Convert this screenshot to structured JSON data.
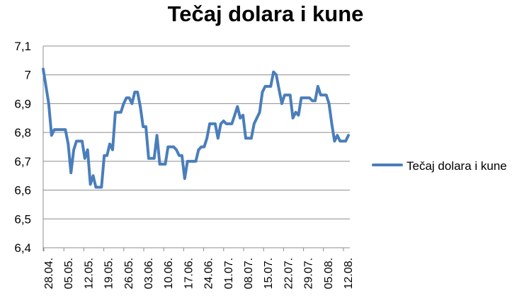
{
  "chart_data": {
    "type": "line",
    "title": "Tečaj dolara i kune",
    "xlabel": "",
    "ylabel": "",
    "ylim": [
      6.4,
      7.1
    ],
    "yticks": [
      "6,4",
      "6,5",
      "6,6",
      "6,7",
      "6,8",
      "6,9",
      "7",
      "7,1"
    ],
    "x_tick_labels": [
      "28.04.",
      "05.05.",
      "12.05.",
      "19.05.",
      "26.05.",
      "03.06.",
      "10.06.",
      "17.06.",
      "24.06.",
      "01.07.",
      "08.07.",
      "15.07.",
      "22.07.",
      "29.07.",
      "05.08.",
      "12.08."
    ],
    "grid": true,
    "legend": "right",
    "colors": {
      "series": "#4a7ebb"
    },
    "series": [
      {
        "name": "Tečaj dolara i kune",
        "values": [
          7.02,
          6.96,
          6.9,
          6.79,
          6.81,
          6.81,
          6.81,
          6.81,
          6.81,
          6.76,
          6.66,
          6.74,
          6.77,
          6.77,
          6.77,
          6.71,
          6.74,
          6.62,
          6.65,
          6.61,
          6.61,
          6.61,
          6.72,
          6.72,
          6.76,
          6.74,
          6.87,
          6.87,
          6.87,
          6.9,
          6.92,
          6.92,
          6.9,
          6.94,
          6.94,
          6.89,
          6.82,
          6.82,
          6.71,
          6.71,
          6.71,
          6.79,
          6.69,
          6.69,
          6.69,
          6.75,
          6.75,
          6.75,
          6.74,
          6.72,
          6.72,
          6.64,
          6.7,
          6.7,
          6.7,
          6.7,
          6.74,
          6.75,
          6.75,
          6.78,
          6.83,
          6.83,
          6.83,
          6.78,
          6.83,
          6.84,
          6.83,
          6.83,
          6.83,
          6.86,
          6.89,
          6.85,
          6.86,
          6.78,
          6.78,
          6.78,
          6.83,
          6.85,
          6.87,
          6.94,
          6.96,
          6.96,
          6.96,
          7.01,
          7.0,
          6.95,
          6.9,
          6.93,
          6.93,
          6.93,
          6.85,
          6.87,
          6.86,
          6.92,
          6.92,
          6.92,
          6.92,
          6.91,
          6.91,
          6.96,
          6.93,
          6.93,
          6.93,
          6.9,
          6.83,
          6.77,
          6.79,
          6.77,
          6.77,
          6.77,
          6.79
        ]
      }
    ]
  }
}
